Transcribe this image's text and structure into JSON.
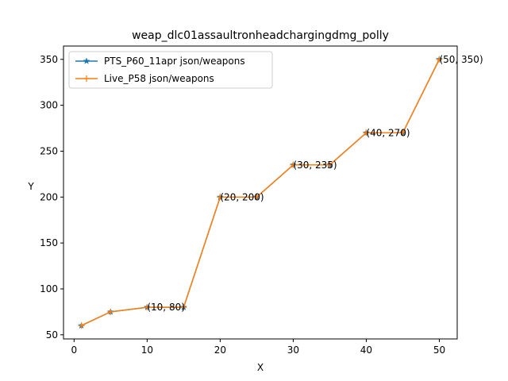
{
  "chart_data": {
    "type": "line",
    "title": "weap_dlc01assaultronheadchargingdmg_polly",
    "xlabel": "X",
    "ylabel": "Y",
    "xlim": [
      -1.45,
      52.45
    ],
    "ylim": [
      45.5,
      364.5
    ],
    "xticks": [
      0,
      10,
      20,
      30,
      40,
      50
    ],
    "yticks": [
      50,
      100,
      150,
      200,
      250,
      300,
      350
    ],
    "grid": false,
    "legend_position": "top-left",
    "series": [
      {
        "name": "PTS_P60_11apr json/weapons",
        "color": "#1f77b4",
        "marker": "star",
        "x": [
          1,
          5,
          10,
          15,
          20,
          25,
          30,
          35,
          40,
          45,
          50
        ],
        "y": [
          60,
          75,
          80,
          80,
          200,
          200,
          235,
          235,
          270,
          270,
          350
        ]
      },
      {
        "name": "Live_P58 json/weapons",
        "color": "#ff7f0e",
        "marker": "plus",
        "x": [
          1,
          5,
          10,
          15,
          20,
          25,
          30,
          35,
          40,
          45,
          50
        ],
        "y": [
          60,
          75,
          80,
          80,
          200,
          200,
          235,
          235,
          270,
          270,
          350
        ]
      }
    ],
    "annotations": [
      {
        "text": "(10, 80)",
        "x": 10,
        "y": 80
      },
      {
        "text": "(20, 200)",
        "x": 20,
        "y": 200
      },
      {
        "text": "(30, 235)",
        "x": 30,
        "y": 235
      },
      {
        "text": "(40, 270)",
        "x": 40,
        "y": 270
      },
      {
        "text": "(50, 350)",
        "x": 50,
        "y": 350
      }
    ]
  }
}
